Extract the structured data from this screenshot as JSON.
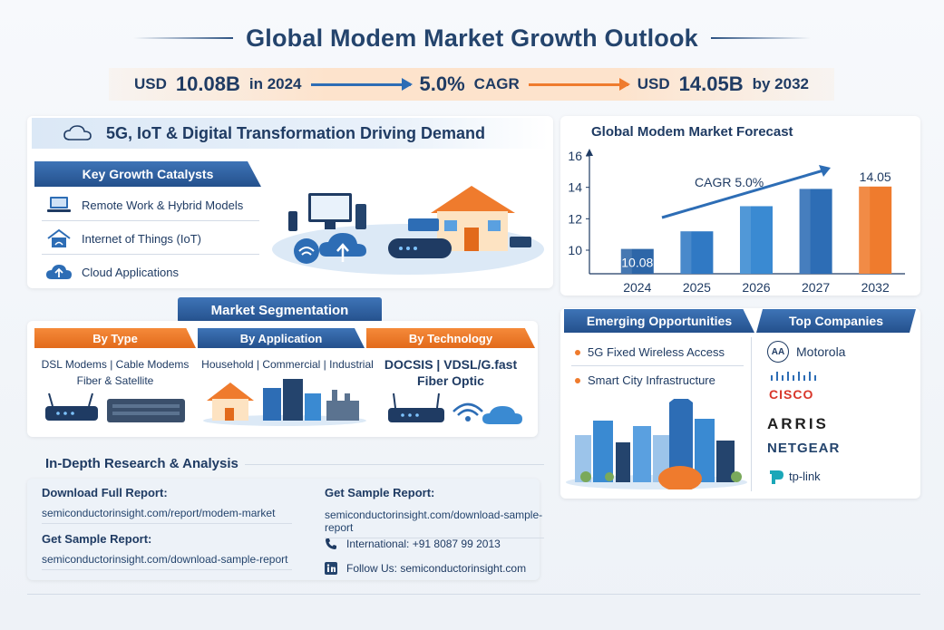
{
  "header": {
    "title": "Global Modem Market Growth Outlook",
    "stat_start_prefix": "USD",
    "stat_start_value": "10.08B",
    "stat_start_suffix": "in 2024",
    "stat_mid_value": "5.0%",
    "stat_mid_suffix": "CAGR",
    "stat_end_prefix": "USD",
    "stat_end_value": "14.05B",
    "stat_end_suffix": "by 2032"
  },
  "drivers": {
    "banner": "5G, IoT & Digital Transformation Driving Demand",
    "heading": "Key Growth Catalysts",
    "items": [
      "Remote Work & Hybrid Models",
      "Internet of Things (IoT)",
      "Cloud Applications"
    ]
  },
  "segmentation": {
    "heading": "Market Segmentation",
    "by_type": {
      "label": "By Type",
      "line1": "DSL Modems | Cable Modems",
      "line2": "Fiber & Satellite"
    },
    "by_application": {
      "label": "By Application",
      "line1": "Household | Commercial | Industrial"
    },
    "by_technology": {
      "label": "By Technology",
      "line1": "DOCSIS | VDSL/G.fast",
      "line2": "Fiber Optic"
    }
  },
  "research": {
    "heading": "In-Depth Research & Analysis",
    "download_label": "Download Full Report:",
    "download_domain": "semiconductorinsight.com",
    "download_path": "/report/modem-market",
    "sample_label_left": "Get Sample Report:",
    "sample_domain_left": "semiconductorinsight.com",
    "sample_path_left": "/download-sample-report",
    "sample_label_right": "Get Sample Report:",
    "sample_domain_right": "semiconductorinsight.com",
    "sample_path_right": "/download-sample-report",
    "phone": "International: +91 8087 99 2013",
    "follow": "Follow Us: semiconductorinsight.com"
  },
  "chart_data": {
    "type": "bar",
    "title": "Global Modem Market Forecast",
    "categories": [
      "2024",
      "2025",
      "2026",
      "2027",
      "2032"
    ],
    "values": [
      10.08,
      11.2,
      12.8,
      13.9,
      14.05
    ],
    "data_labels": [
      "10.08",
      "",
      "",
      "",
      "14.05"
    ],
    "annotation": "CAGR 5.0%",
    "ylim": [
      8.5,
      16
    ],
    "yticks": [
      "10",
      "12",
      "14",
      "16"
    ],
    "colors": [
      "#2d66a8",
      "#3079c4",
      "#3a8ad2",
      "#2d6db5",
      "#ef7b2d"
    ]
  },
  "opportunities": {
    "heading": "Emerging Opportunities",
    "items": [
      "5G Fixed Wireless Access",
      "Smart City Infrastructure"
    ]
  },
  "companies": {
    "heading": "Top Companies",
    "list": [
      "Motorola",
      "CISCO",
      "ARRIS",
      "NETGEAR",
      "tp-link"
    ],
    "motorola_badge": "AA"
  },
  "colors": {
    "blue": "#2d6db5",
    "orange": "#ef7b2d",
    "navy": "#1f3b63"
  }
}
